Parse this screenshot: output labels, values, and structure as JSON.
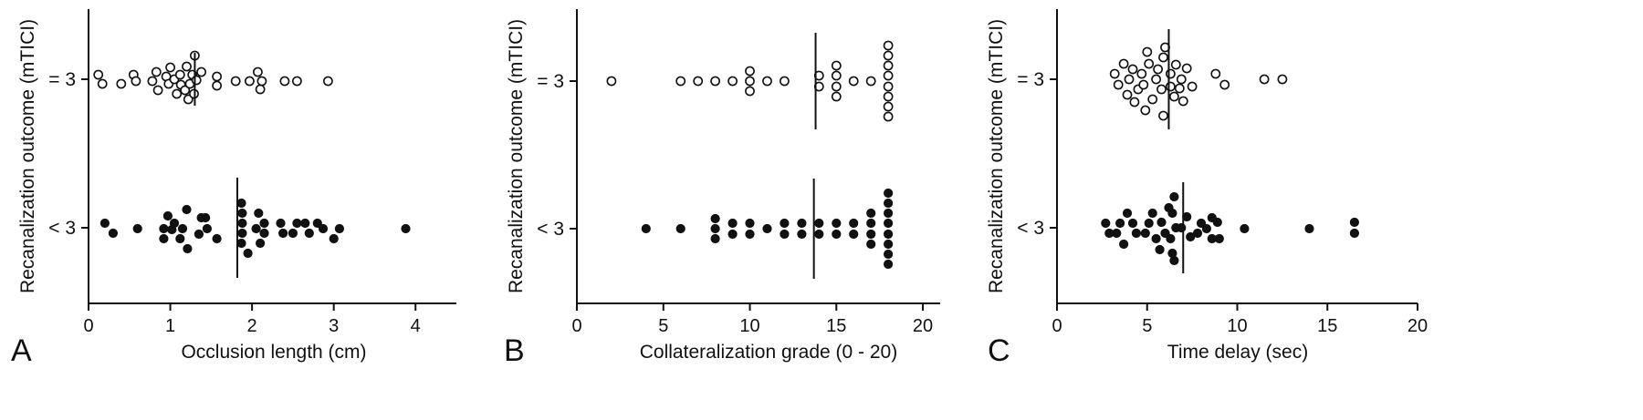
{
  "chart_data": [
    {
      "panel": "A",
      "type": "scatter",
      "xlabel": "Occlusion length (cm)",
      "ylabel": "Recanalization outcome (mTICI)",
      "categories": [
        "= 3",
        "< 3"
      ],
      "xlim": [
        0,
        4.5
      ],
      "xticks": [
        0,
        1,
        2,
        3,
        4
      ],
      "medians": {
        "= 3": 1.3,
        "< 3": 1.82
      },
      "series": [
        {
          "category": "= 3",
          "marker": "open",
          "points": [
            {
              "x": 0.12,
              "y": -0.5
            },
            {
              "x": 0.17,
              "y": 0.5
            },
            {
              "x": 0.4,
              "y": 0.5
            },
            {
              "x": 0.55,
              "y": -0.5
            },
            {
              "x": 0.58,
              "y": 0.2
            },
            {
              "x": 0.78,
              "y": 0.2
            },
            {
              "x": 0.83,
              "y": -0.8
            },
            {
              "x": 0.85,
              "y": 1.2
            },
            {
              "x": 0.95,
              "y": -0.3
            },
            {
              "x": 0.98,
              "y": 0.5
            },
            {
              "x": 1.0,
              "y": -1.3
            },
            {
              "x": 1.05,
              "y": 0.0
            },
            {
              "x": 1.08,
              "y": 1.6
            },
            {
              "x": 1.12,
              "y": -0.5
            },
            {
              "x": 1.13,
              "y": 0.6
            },
            {
              "x": 1.18,
              "y": 1.2
            },
            {
              "x": 1.2,
              "y": -1.4
            },
            {
              "x": 1.22,
              "y": 2.2
            },
            {
              "x": 1.24,
              "y": 0.5
            },
            {
              "x": 1.27,
              "y": -0.5
            },
            {
              "x": 1.29,
              "y": 1.6
            },
            {
              "x": 1.3,
              "y": -2.6
            },
            {
              "x": 1.32,
              "y": 0.1
            },
            {
              "x": 1.38,
              "y": -0.8
            },
            {
              "x": 1.57,
              "y": -0.3
            },
            {
              "x": 1.57,
              "y": 0.7
            },
            {
              "x": 1.8,
              "y": 0.2
            },
            {
              "x": 1.97,
              "y": 0.2
            },
            {
              "x": 2.07,
              "y": -0.8
            },
            {
              "x": 2.1,
              "y": 1.1
            },
            {
              "x": 2.12,
              "y": 0.2
            },
            {
              "x": 2.4,
              "y": 0.2
            },
            {
              "x": 2.55,
              "y": 0.2
            },
            {
              "x": 2.93,
              "y": 0.2
            }
          ]
        },
        {
          "category": "< 3",
          "marker": "filled",
          "points": [
            {
              "x": 0.2,
              "y": -0.5
            },
            {
              "x": 0.3,
              "y": 0.6
            },
            {
              "x": 0.6,
              "y": 0.1
            },
            {
              "x": 0.92,
              "y": 1.2
            },
            {
              "x": 0.92,
              "y": 0.1
            },
            {
              "x": 0.97,
              "y": -1.3
            },
            {
              "x": 1.02,
              "y": 0.2
            },
            {
              "x": 1.05,
              "y": -0.5
            },
            {
              "x": 1.12,
              "y": 1.2
            },
            {
              "x": 1.15,
              "y": 0.1
            },
            {
              "x": 1.2,
              "y": -2.0
            },
            {
              "x": 1.21,
              "y": 2.3
            },
            {
              "x": 1.35,
              "y": 0.7
            },
            {
              "x": 1.38,
              "y": -1.1
            },
            {
              "x": 1.43,
              "y": -1.1
            },
            {
              "x": 1.45,
              "y": 0.1
            },
            {
              "x": 1.57,
              "y": 1.2
            },
            {
              "x": 1.87,
              "y": -2.7
            },
            {
              "x": 1.87,
              "y": 1.7
            },
            {
              "x": 1.88,
              "y": -1.6
            },
            {
              "x": 1.88,
              "y": -0.5
            },
            {
              "x": 1.88,
              "y": 0.6
            },
            {
              "x": 1.95,
              "y": 2.8
            },
            {
              "x": 2.05,
              "y": 0.1
            },
            {
              "x": 2.08,
              "y": -1.6
            },
            {
              "x": 2.1,
              "y": 1.7
            },
            {
              "x": 2.15,
              "y": -0.5
            },
            {
              "x": 2.15,
              "y": 0.6
            },
            {
              "x": 2.35,
              "y": -0.5
            },
            {
              "x": 2.38,
              "y": 0.6
            },
            {
              "x": 2.5,
              "y": 0.6
            },
            {
              "x": 2.55,
              "y": -0.5
            },
            {
              "x": 2.65,
              "y": -0.5
            },
            {
              "x": 2.7,
              "y": 0.6
            },
            {
              "x": 2.8,
              "y": -0.5
            },
            {
              "x": 2.87,
              "y": 0.1
            },
            {
              "x": 3.0,
              "y": 1.2
            },
            {
              "x": 3.07,
              "y": 0.1
            },
            {
              "x": 3.88,
              "y": 0.1
            }
          ]
        }
      ]
    },
    {
      "panel": "B",
      "type": "scatter",
      "xlabel": "Collateralization grade (0 - 20)",
      "ylabel": "Recanalization outcome (mTICI)",
      "categories": [
        "= 3",
        "< 3"
      ],
      "xlim": [
        0,
        21
      ],
      "xticks": [
        0,
        5,
        10,
        15,
        20
      ],
      "medians": {
        "= 3": 13.8,
        "< 3": 13.7
      },
      "series": [
        {
          "category": "= 3",
          "marker": "open",
          "points": [
            {
              "x": 2,
              "y": 0.0
            },
            {
              "x": 6,
              "y": 0.0
            },
            {
              "x": 7,
              "y": 0.0
            },
            {
              "x": 8,
              "y": 0.0
            },
            {
              "x": 9,
              "y": 0.0
            },
            {
              "x": 10,
              "y": -1.1
            },
            {
              "x": 10,
              "y": 0.0
            },
            {
              "x": 10,
              "y": 1.1
            },
            {
              "x": 11,
              "y": 0.0
            },
            {
              "x": 12,
              "y": 0.0
            },
            {
              "x": 14,
              "y": -0.6
            },
            {
              "x": 14,
              "y": 0.6
            },
            {
              "x": 15,
              "y": -1.7
            },
            {
              "x": 15,
              "y": -0.6
            },
            {
              "x": 15,
              "y": 0.6
            },
            {
              "x": 15,
              "y": 1.7
            },
            {
              "x": 16,
              "y": 0.0
            },
            {
              "x": 17,
              "y": 0.0
            },
            {
              "x": 18,
              "y": -3.9
            },
            {
              "x": 18,
              "y": -2.8
            },
            {
              "x": 18,
              "y": -1.7
            },
            {
              "x": 18,
              "y": -0.6
            },
            {
              "x": 18,
              "y": 0.6
            },
            {
              "x": 18,
              "y": 1.7
            },
            {
              "x": 18,
              "y": 2.8
            },
            {
              "x": 18,
              "y": 3.9
            }
          ]
        },
        {
          "category": "< 3",
          "marker": "filled",
          "points": [
            {
              "x": 4,
              "y": 0.0
            },
            {
              "x": 6,
              "y": 0.0
            },
            {
              "x": 8,
              "y": -1.1
            },
            {
              "x": 8,
              "y": 0.0
            },
            {
              "x": 8,
              "y": 1.1
            },
            {
              "x": 9,
              "y": -0.6
            },
            {
              "x": 9,
              "y": 0.6
            },
            {
              "x": 10,
              "y": -0.6
            },
            {
              "x": 10,
              "y": 0.6
            },
            {
              "x": 11,
              "y": 0.0
            },
            {
              "x": 12,
              "y": -0.6
            },
            {
              "x": 12,
              "y": 0.6
            },
            {
              "x": 13,
              "y": -0.6
            },
            {
              "x": 13,
              "y": 0.6
            },
            {
              "x": 14,
              "y": -0.6
            },
            {
              "x": 14,
              "y": 0.6
            },
            {
              "x": 15,
              "y": -0.6
            },
            {
              "x": 15,
              "y": 0.6
            },
            {
              "x": 16,
              "y": -0.6
            },
            {
              "x": 16,
              "y": 0.6
            },
            {
              "x": 17,
              "y": -1.7
            },
            {
              "x": 17,
              "y": -0.6
            },
            {
              "x": 17,
              "y": 0.6
            },
            {
              "x": 17,
              "y": 1.7
            },
            {
              "x": 18,
              "y": -3.9
            },
            {
              "x": 18,
              "y": -2.8
            },
            {
              "x": 18,
              "y": -1.7
            },
            {
              "x": 18,
              "y": -0.6
            },
            {
              "x": 18,
              "y": 0.6
            },
            {
              "x": 18,
              "y": 1.7
            },
            {
              "x": 18,
              "y": 2.8
            },
            {
              "x": 18,
              "y": 3.9
            }
          ]
        }
      ]
    },
    {
      "panel": "C",
      "type": "scatter",
      "xlabel": "Time delay (sec)",
      "ylabel": "Recanalization outcome (mTICI)",
      "categories": [
        "= 3",
        "< 3"
      ],
      "xlim": [
        0,
        20
      ],
      "xticks": [
        0,
        5,
        10,
        15,
        20
      ],
      "medians": {
        "= 3": 6.2,
        "< 3": 7.0
      },
      "series": [
        {
          "category": "= 3",
          "marker": "open",
          "points": [
            {
              "x": 3.2,
              "y": -0.6
            },
            {
              "x": 3.4,
              "y": 0.6
            },
            {
              "x": 3.7,
              "y": -1.7
            },
            {
              "x": 3.9,
              "y": 1.7
            },
            {
              "x": 4.0,
              "y": 0.0
            },
            {
              "x": 4.2,
              "y": -1.1
            },
            {
              "x": 4.3,
              "y": 2.5
            },
            {
              "x": 4.5,
              "y": 1.1
            },
            {
              "x": 4.7,
              "y": -0.6
            },
            {
              "x": 4.8,
              "y": 0.6
            },
            {
              "x": 4.9,
              "y": 3.4
            },
            {
              "x": 5.0,
              "y": -3.0
            },
            {
              "x": 5.1,
              "y": -1.7
            },
            {
              "x": 5.3,
              "y": 2.2
            },
            {
              "x": 5.5,
              "y": 0.0
            },
            {
              "x": 5.6,
              "y": -1.1
            },
            {
              "x": 5.8,
              "y": 1.1
            },
            {
              "x": 5.9,
              "y": -2.4
            },
            {
              "x": 5.9,
              "y": 4.0
            },
            {
              "x": 6.0,
              "y": -3.5
            },
            {
              "x": 6.3,
              "y": 0.8
            },
            {
              "x": 6.3,
              "y": -0.6
            },
            {
              "x": 6.5,
              "y": 1.9
            },
            {
              "x": 6.6,
              "y": -1.6
            },
            {
              "x": 6.8,
              "y": 1.0
            },
            {
              "x": 6.9,
              "y": 0.0
            },
            {
              "x": 7.0,
              "y": 2.4
            },
            {
              "x": 7.2,
              "y": -1.2
            },
            {
              "x": 7.5,
              "y": 0.8
            },
            {
              "x": 8.8,
              "y": -0.6
            },
            {
              "x": 9.3,
              "y": 0.6
            },
            {
              "x": 11.5,
              "y": 0.0
            },
            {
              "x": 12.5,
              "y": 0.0
            }
          ]
        },
        {
          "category": "< 3",
          "marker": "filled",
          "points": [
            {
              "x": 2.7,
              "y": -0.5
            },
            {
              "x": 2.9,
              "y": 0.6
            },
            {
              "x": 3.3,
              "y": 0.6
            },
            {
              "x": 3.5,
              "y": -0.5
            },
            {
              "x": 3.7,
              "y": 1.8
            },
            {
              "x": 3.9,
              "y": -1.6
            },
            {
              "x": 4.2,
              "y": -0.5
            },
            {
              "x": 4.4,
              "y": 0.6
            },
            {
              "x": 4.9,
              "y": 0.6
            },
            {
              "x": 5.1,
              "y": -0.5
            },
            {
              "x": 5.3,
              "y": -1.6
            },
            {
              "x": 5.5,
              "y": 1.2
            },
            {
              "x": 5.7,
              "y": 2.4
            },
            {
              "x": 5.8,
              "y": -0.6
            },
            {
              "x": 6.0,
              "y": 0.6
            },
            {
              "x": 6.2,
              "y": -2.2
            },
            {
              "x": 6.3,
              "y": 1.2
            },
            {
              "x": 6.4,
              "y": -1.6
            },
            {
              "x": 6.4,
              "y": 2.8
            },
            {
              "x": 6.5,
              "y": -3.4
            },
            {
              "x": 6.5,
              "y": 3.6
            },
            {
              "x": 6.6,
              "y": 0.0
            },
            {
              "x": 6.9,
              "y": 0.0
            },
            {
              "x": 7.2,
              "y": -1.2
            },
            {
              "x": 7.4,
              "y": 1.0
            },
            {
              "x": 7.8,
              "y": 0.6
            },
            {
              "x": 8.0,
              "y": -0.5
            },
            {
              "x": 8.3,
              "y": 0.1
            },
            {
              "x": 8.6,
              "y": -1.1
            },
            {
              "x": 8.6,
              "y": 1.2
            },
            {
              "x": 8.9,
              "y": -0.6
            },
            {
              "x": 9.0,
              "y": 1.2
            },
            {
              "x": 10.4,
              "y": 0.1
            },
            {
              "x": 14.0,
              "y": 0.1
            },
            {
              "x": 16.5,
              "y": 0.6
            },
            {
              "x": 16.5,
              "y": -0.6
            }
          ]
        }
      ]
    }
  ]
}
